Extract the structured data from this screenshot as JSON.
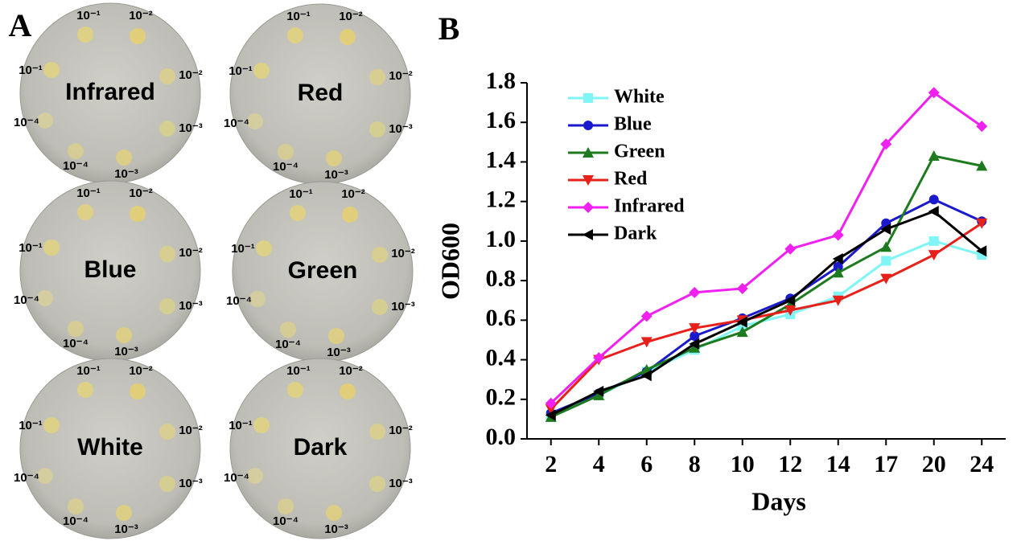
{
  "panels": {
    "A": {
      "label": "A",
      "plates": [
        {
          "name": "Infrared",
          "dilutions": [
            "10⁻¹",
            "10⁻²",
            "10⁻¹",
            "10⁻²",
            "10⁻⁴",
            "10⁻³",
            "10⁻⁴",
            "10⁻³"
          ]
        },
        {
          "name": "Red",
          "dilutions": [
            "10⁻¹",
            "10⁻²",
            "10⁻¹",
            "10⁻²",
            "10⁻⁴",
            "10⁻³",
            "10⁻⁴",
            "10⁻³"
          ]
        },
        {
          "name": "Blue",
          "dilutions": [
            "10⁻¹",
            "10⁻²",
            "10⁻¹",
            "10⁻²",
            "10⁻⁴",
            "10⁻³",
            "10⁻⁴",
            "10⁻³"
          ]
        },
        {
          "name": "Green",
          "dilutions": [
            "10⁻¹",
            "10⁻²",
            "10⁻¹",
            "10⁻²",
            "10⁻⁴",
            "10⁻³",
            "10⁻⁴",
            "10⁻³"
          ]
        },
        {
          "name": "White",
          "dilutions": [
            "10⁻¹",
            "10⁻²",
            "10⁻¹",
            "10⁻²",
            "10⁻⁴",
            "10⁻³",
            "10⁻⁴",
            "10⁻³"
          ]
        },
        {
          "name": "Dark",
          "dilutions": [
            "10⁻¹",
            "10⁻²",
            "10⁻¹",
            "10⁻²",
            "10⁻⁴",
            "10⁻³",
            "10⁻⁴",
            "10⁻³"
          ]
        }
      ]
    },
    "B": {
      "label": "B"
    }
  },
  "chart_data": {
    "type": "line",
    "x_label": "Days",
    "y_label": "OD600",
    "categories": [
      "2",
      "4",
      "6",
      "8",
      "10",
      "12",
      "14",
      "17",
      "20",
      "24"
    ],
    "ylim": [
      0,
      1.8
    ],
    "yticks": [
      {
        "value": 0,
        "label": "0.0"
      },
      0.2,
      0.4,
      0.6,
      0.8,
      {
        "value": 1,
        "label": "1.0"
      },
      1.2,
      1.4,
      1.6,
      1.8
    ],
    "legend": "top-left",
    "series": [
      {
        "name": "White",
        "color": "#7ff5f5",
        "marker": "square",
        "values": [
          0.12,
          0.22,
          0.34,
          0.45,
          0.57,
          0.63,
          0.72,
          0.9,
          1.0,
          0.93
        ]
      },
      {
        "name": "Blue",
        "color": "#1a1acc",
        "marker": "circle",
        "values": [
          0.13,
          0.23,
          0.34,
          0.52,
          0.61,
          0.71,
          0.87,
          1.09,
          1.21,
          1.1
        ]
      },
      {
        "name": "Green",
        "color": "#1e7a1e",
        "marker": "triangle-up",
        "values": [
          0.11,
          0.22,
          0.35,
          0.46,
          0.54,
          0.68,
          0.84,
          0.97,
          1.43,
          1.38
        ]
      },
      {
        "name": "Red",
        "color": "#e8201a",
        "marker": "triangle-down",
        "values": [
          0.15,
          0.4,
          0.49,
          0.56,
          0.6,
          0.65,
          0.7,
          0.81,
          0.93,
          1.09
        ]
      },
      {
        "name": "Infrared",
        "color": "#f020f0",
        "marker": "diamond",
        "values": [
          0.18,
          0.41,
          0.62,
          0.74,
          0.76,
          0.96,
          1.03,
          1.49,
          1.75,
          1.58
        ]
      },
      {
        "name": "Dark",
        "color": "#000000",
        "marker": "triangle-left",
        "values": [
          0.12,
          0.24,
          0.32,
          0.48,
          0.59,
          0.7,
          0.91,
          1.06,
          1.15,
          0.95
        ]
      }
    ]
  }
}
